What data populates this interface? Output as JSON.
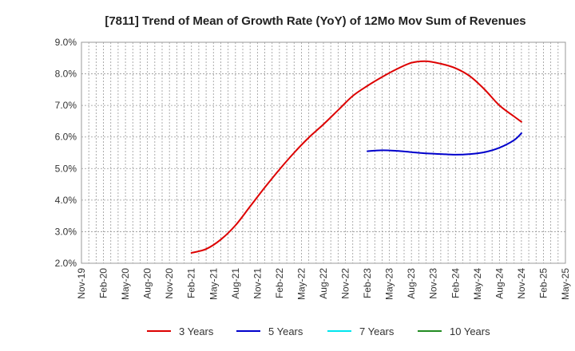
{
  "chart_data": {
    "type": "line",
    "title": "[7811]  Trend of Mean of Growth Rate (YoY) of 12Mo Mov Sum of Revenues",
    "xlabel": "",
    "ylabel": "",
    "ylim": [
      2.0,
      9.0
    ],
    "yticks": [
      "2.0%",
      "3.0%",
      "4.0%",
      "5.0%",
      "6.0%",
      "7.0%",
      "8.0%",
      "9.0%"
    ],
    "x_start": "Nov-19",
    "x_end": "May-25",
    "x_tick_labels": [
      "Nov-19",
      "Feb-20",
      "May-20",
      "Aug-20",
      "Nov-20",
      "Feb-21",
      "May-21",
      "Aug-21",
      "Nov-21",
      "Feb-22",
      "May-22",
      "Aug-22",
      "Nov-22",
      "Feb-23",
      "May-23",
      "Aug-23",
      "Nov-23",
      "Feb-24",
      "May-24",
      "Aug-24",
      "Nov-24",
      "Feb-25",
      "May-25"
    ],
    "grid": true,
    "legend_position": "bottom",
    "series": [
      {
        "name": "3 Years",
        "color": "#dd0000",
        "points": [
          [
            "Feb-21",
            2.33
          ],
          [
            "Apr-21",
            2.45
          ],
          [
            "Jun-21",
            2.75
          ],
          [
            "Aug-21",
            3.2
          ],
          [
            "Oct-21",
            3.8
          ],
          [
            "Dec-21",
            4.4
          ],
          [
            "Feb-22",
            4.97
          ],
          [
            "Apr-22",
            5.5
          ],
          [
            "Jun-22",
            5.98
          ],
          [
            "Aug-22",
            6.4
          ],
          [
            "Oct-22",
            6.85
          ],
          [
            "Dec-22",
            7.3
          ],
          [
            "Feb-23",
            7.62
          ],
          [
            "Apr-23",
            7.9
          ],
          [
            "Jun-23",
            8.15
          ],
          [
            "Aug-23",
            8.35
          ],
          [
            "Oct-23",
            8.4
          ],
          [
            "Dec-23",
            8.32
          ],
          [
            "Feb-24",
            8.18
          ],
          [
            "Apr-24",
            7.92
          ],
          [
            "Jun-24",
            7.5
          ],
          [
            "Aug-24",
            7.0
          ],
          [
            "Oct-24",
            6.65
          ],
          [
            "Nov-24",
            6.48
          ]
        ]
      },
      {
        "name": "5 Years",
        "color": "#0000cc",
        "points": [
          [
            "Feb-23",
            5.55
          ],
          [
            "Apr-23",
            5.58
          ],
          [
            "Jun-23",
            5.56
          ],
          [
            "Aug-23",
            5.52
          ],
          [
            "Oct-23",
            5.48
          ],
          [
            "Dec-23",
            5.46
          ],
          [
            "Feb-24",
            5.44
          ],
          [
            "Apr-24",
            5.46
          ],
          [
            "Jun-24",
            5.52
          ],
          [
            "Aug-24",
            5.66
          ],
          [
            "Oct-24",
            5.9
          ],
          [
            "Nov-24",
            6.12
          ]
        ]
      },
      {
        "name": "7 Years",
        "color": "#00e5ee",
        "points": []
      },
      {
        "name": "10 Years",
        "color": "#228b22",
        "points": []
      }
    ]
  }
}
